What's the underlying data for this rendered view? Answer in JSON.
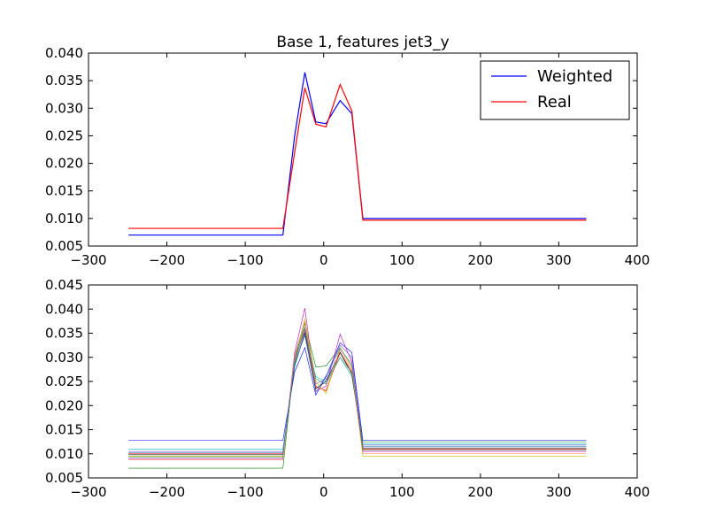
{
  "chart_data": [
    {
      "type": "line",
      "title": "Base 1, features jet3_y",
      "xlabel": "",
      "ylabel": "",
      "xlim": [
        -300,
        400
      ],
      "ylim": [
        0.005,
        0.04
      ],
      "xticks": [
        -300,
        -200,
        -100,
        0,
        100,
        200,
        300,
        400
      ],
      "xtick_labels": [
        "−300",
        "−200",
        "−100",
        "0",
        "100",
        "200",
        "300",
        "400"
      ],
      "yticks": [
        0.005,
        0.01,
        0.015,
        0.02,
        0.025,
        0.03,
        0.035,
        0.04
      ],
      "ytick_labels": [
        "0.005",
        "0.010",
        "0.015",
        "0.020",
        "0.025",
        "0.030",
        "0.035",
        "0.040"
      ],
      "legend": "top-right",
      "x": [
        -249,
        -52,
        -37,
        -24,
        -10,
        3,
        21,
        36,
        50,
        335
      ],
      "series": [
        {
          "name": "Weighted",
          "color": "#0000ff",
          "values": [
            0.007,
            0.007,
            0.025,
            0.0365,
            0.0275,
            0.0272,
            0.0314,
            0.029,
            0.01,
            0.01
          ]
        },
        {
          "name": "Real",
          "color": "#ff0000",
          "values": [
            0.0082,
            0.0082,
            0.022,
            0.0337,
            0.0271,
            0.0266,
            0.0343,
            0.0295,
            0.0097,
            0.0097
          ]
        }
      ]
    },
    {
      "type": "line",
      "title": "",
      "xlabel": "",
      "ylabel": "",
      "xlim": [
        -300,
        400
      ],
      "ylim": [
        0.005,
        0.045
      ],
      "xticks": [
        -300,
        -200,
        -100,
        0,
        100,
        200,
        300,
        400
      ],
      "xtick_labels": [
        "−300",
        "−200",
        "−100",
        "0",
        "100",
        "200",
        "300",
        "400"
      ],
      "yticks": [
        0.005,
        0.01,
        0.015,
        0.02,
        0.025,
        0.03,
        0.035,
        0.04,
        0.045
      ],
      "ytick_labels": [
        "0.005",
        "0.010",
        "0.015",
        "0.020",
        "0.025",
        "0.030",
        "0.035",
        "0.040",
        "0.045"
      ],
      "x": [
        -249,
        -52,
        -37,
        -24,
        -10,
        3,
        21,
        36,
        50,
        335
      ],
      "series": [
        {
          "color": "#0000ff",
          "values": [
            0.0128,
            0.0128,
            0.027,
            0.032,
            0.0222,
            0.026,
            0.033,
            0.031,
            0.0128,
            0.0128
          ]
        },
        {
          "color": "#008000",
          "values": [
            0.007,
            0.007,
            0.03,
            0.037,
            0.028,
            0.0282,
            0.032,
            0.028,
            0.0125,
            0.0125
          ]
        },
        {
          "color": "#ff0000",
          "values": [
            0.01,
            0.01,
            0.029,
            0.036,
            0.024,
            0.023,
            0.031,
            0.027,
            0.011,
            0.011
          ]
        },
        {
          "color": "#00bfbf",
          "values": [
            0.011,
            0.011,
            0.028,
            0.035,
            0.026,
            0.025,
            0.03,
            0.026,
            0.012,
            0.012
          ]
        },
        {
          "color": "#bf00bf",
          "values": [
            0.009,
            0.009,
            0.031,
            0.0402,
            0.023,
            0.024,
            0.0348,
            0.029,
            0.0105,
            0.0105
          ]
        },
        {
          "color": "#bfbf00",
          "values": [
            0.0095,
            0.0095,
            0.029,
            0.038,
            0.025,
            0.0225,
            0.032,
            0.028,
            0.0095,
            0.0095
          ]
        },
        {
          "color": "#000000",
          "values": [
            0.0098,
            0.0098,
            0.0285,
            0.035,
            0.0235,
            0.025,
            0.031,
            0.0265,
            0.0112,
            0.0112
          ]
        },
        {
          "color": "#6a5acd",
          "values": [
            0.0105,
            0.0105,
            0.0295,
            0.0355,
            0.0245,
            0.0255,
            0.0325,
            0.03,
            0.0118,
            0.0118
          ]
        },
        {
          "color": "#2e8b57",
          "values": [
            0.0093,
            0.0093,
            0.03,
            0.0362,
            0.0255,
            0.0245,
            0.03,
            0.0268,
            0.0108,
            0.0108
          ]
        },
        {
          "color": "#ff7f50",
          "values": [
            0.0088,
            0.0088,
            0.0305,
            0.0375,
            0.0238,
            0.0232,
            0.0315,
            0.0275,
            0.01,
            0.01
          ]
        },
        {
          "color": "#4682b4",
          "values": [
            0.0102,
            0.0102,
            0.0288,
            0.0345,
            0.0228,
            0.0262,
            0.0318,
            0.0285,
            0.0115,
            0.0115
          ]
        }
      ]
    }
  ]
}
